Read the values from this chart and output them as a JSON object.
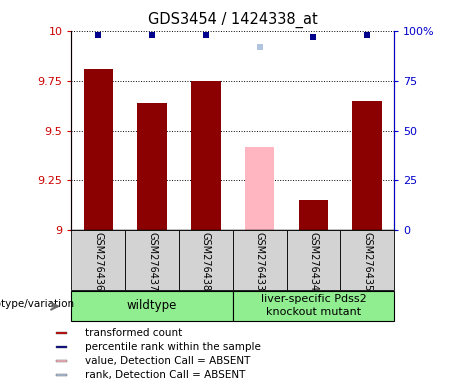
{
  "title": "GDS3454 / 1424338_at",
  "samples": [
    "GSM276436",
    "GSM276437",
    "GSM276438",
    "GSM276433",
    "GSM276434",
    "GSM276435"
  ],
  "bar_values": [
    9.81,
    9.64,
    9.75,
    9.42,
    9.15,
    9.65
  ],
  "bar_absent": [
    false,
    false,
    false,
    true,
    false,
    false
  ],
  "rank_values": [
    98,
    98,
    98,
    92,
    97,
    98
  ],
  "rank_absent": [
    false,
    false,
    false,
    true,
    false,
    false
  ],
  "ylim_left": [
    9.0,
    10.0
  ],
  "ylim_right": [
    0,
    100
  ],
  "yticks_left": [
    9.0,
    9.25,
    9.5,
    9.75,
    10.0
  ],
  "yticks_right": [
    0,
    25,
    50,
    75,
    100
  ],
  "groups": [
    {
      "label": "wildtype",
      "span": [
        0,
        3
      ],
      "color": "#90ee90"
    },
    {
      "label": "liver-specific Pdss2\nknockout mutant",
      "span": [
        3,
        6
      ],
      "color": "#90ee90"
    }
  ],
  "bar_color_normal": "#8b0000",
  "bar_color_absent": "#ffb6c1",
  "rank_color_normal": "#00008b",
  "rank_color_absent": "#b0c4de",
  "bar_width": 0.55,
  "rank_marker_size": 5,
  "background_label": "#d3d3d3",
  "legend_items": [
    {
      "label": "transformed count",
      "color": "#cc0000"
    },
    {
      "label": "percentile rank within the sample",
      "color": "#00008b"
    },
    {
      "label": "value, Detection Call = ABSENT",
      "color": "#ffb6c1"
    },
    {
      "label": "rank, Detection Call = ABSENT",
      "color": "#b0c4de"
    }
  ],
  "genotype_label": "genotype/variation",
  "left_axis_color": "#cc0000",
  "right_axis_color": "#0000cc"
}
